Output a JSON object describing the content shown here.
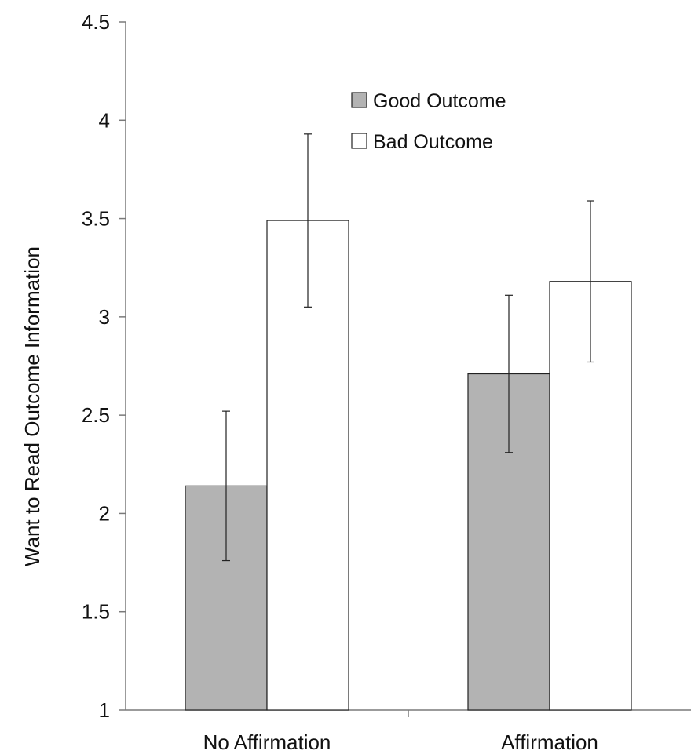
{
  "chart_data": {
    "type": "bar",
    "title": "",
    "xlabel": "",
    "ylabel": "Want to Read  Outcome Information",
    "ylim": [
      1,
      4.5
    ],
    "yticks": [
      "1",
      "1.5",
      "2",
      "2.5",
      "3",
      "3.5",
      "4",
      "4.5"
    ],
    "categories": [
      "No Affirmation",
      "Affirmation"
    ],
    "series": [
      {
        "name": "Good Outcome",
        "color": "#b3b3b3",
        "values": [
          2.14,
          2.71
        ],
        "error": [
          [
            1.76,
            2.52
          ],
          [
            2.31,
            3.11
          ]
        ]
      },
      {
        "name": "Bad Outcome",
        "color": "#ffffff",
        "values": [
          3.49,
          3.18
        ],
        "error": [
          [
            3.05,
            3.93
          ],
          [
            2.77,
            3.59
          ]
        ]
      }
    ],
    "grid": false,
    "legend": "top-right"
  }
}
